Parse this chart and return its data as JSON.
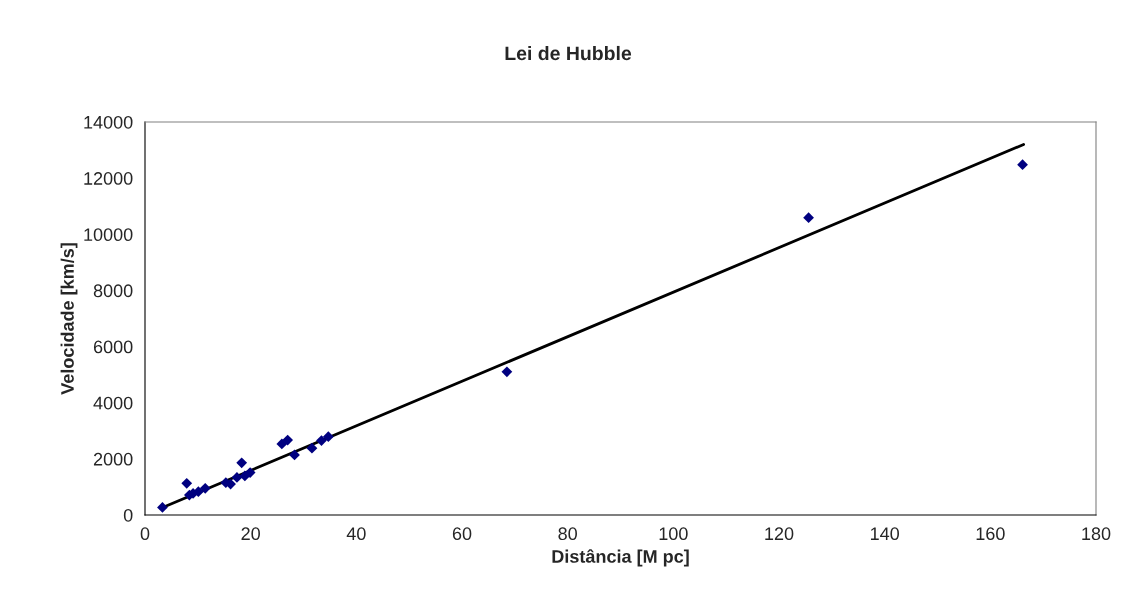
{
  "chart_data": {
    "type": "scatter",
    "title": "Lei de Hubble",
    "xlabel": "Distância [M pc]",
    "ylabel": "Velocidade [km/s]",
    "xlim": [
      0,
      180
    ],
    "xticks": [
      0,
      20,
      40,
      60,
      80,
      100,
      120,
      140,
      160,
      180
    ],
    "ylim": [
      0,
      14000
    ],
    "yticks": [
      0,
      2000,
      4000,
      6000,
      8000,
      10000,
      12000,
      14000
    ],
    "grid": false,
    "legend": false,
    "marker": "diamond",
    "series": [
      {
        "color": "#000080",
        "x": [
          3.3,
          7.9,
          8.4,
          9.1,
          10.1,
          11.4,
          15.3,
          16.2,
          17.4,
          18.3,
          18.9,
          19.9,
          25.9,
          27.0,
          28.3,
          31.6,
          33.4,
          34.7,
          68.5,
          125.6,
          166.1
        ],
        "values": [
          270,
          1130,
          710,
          770,
          830,
          950,
          1150,
          1100,
          1340,
          1860,
          1390,
          1510,
          2530,
          2670,
          2140,
          2380,
          2650,
          2790,
          5100,
          10590,
          12480
        ]
      },
      {
        "type": "line",
        "color": "#000000",
        "x": [
          3.0,
          166.3
        ],
        "values": [
          240,
          13200
        ],
        "marker": "none",
        "line_style": "solid"
      }
    ]
  }
}
